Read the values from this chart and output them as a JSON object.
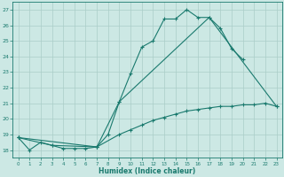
{
  "xlabel": "Humidex (Indice chaleur)",
  "background_color": "#cce8e4",
  "grid_color": "#aacdc8",
  "line_color": "#1a7a6e",
  "xlim": [
    -0.5,
    23.5
  ],
  "ylim": [
    17.5,
    27.5
  ],
  "yticks": [
    18,
    19,
    20,
    21,
    22,
    23,
    24,
    25,
    26,
    27
  ],
  "xticks": [
    0,
    1,
    2,
    3,
    4,
    5,
    6,
    7,
    8,
    9,
    10,
    11,
    12,
    13,
    14,
    15,
    16,
    17,
    18,
    19,
    20,
    21,
    22,
    23
  ],
  "line1_x": [
    0,
    1,
    2,
    3,
    4,
    5,
    6,
    7,
    8,
    9,
    10,
    11,
    12,
    13,
    14,
    15,
    16,
    17,
    18,
    19,
    20
  ],
  "line1_y": [
    18.8,
    18.0,
    18.5,
    18.3,
    18.1,
    18.1,
    18.1,
    18.2,
    19.0,
    21.1,
    22.9,
    24.6,
    25.0,
    26.4,
    26.4,
    27.0,
    26.5,
    26.5,
    25.8,
    24.5,
    23.8
  ],
  "line2_x": [
    0,
    3,
    7,
    9,
    17,
    23
  ],
  "line2_y": [
    18.8,
    18.3,
    18.2,
    21.1,
    26.5,
    20.8
  ],
  "line3_x": [
    0,
    7,
    9,
    10,
    11,
    12,
    13,
    14,
    15,
    16,
    17,
    18,
    19,
    20,
    21,
    22,
    23
  ],
  "line3_y": [
    18.8,
    18.2,
    19.0,
    19.3,
    19.6,
    19.9,
    20.1,
    20.3,
    20.5,
    20.6,
    20.7,
    20.8,
    20.8,
    20.9,
    20.9,
    21.0,
    20.8
  ]
}
